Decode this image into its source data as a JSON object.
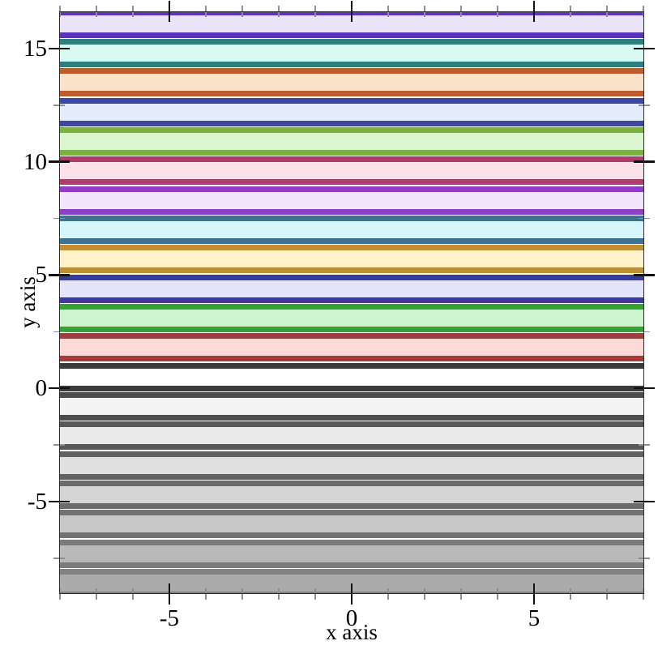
{
  "figure": {
    "background": "#ffffff",
    "frame_color": "#2b2b2b",
    "major_tick_color": "#111111",
    "minor_tick_color": "#8f8f8f"
  },
  "chart_data": {
    "type": "area",
    "subtype": "horizontal-function-intervals",
    "title": "",
    "xlabel": "x axis",
    "ylabel": "y axis",
    "x_range": [
      -8.02,
      8.02
    ],
    "y_range": [
      -9.08,
      16.645
    ],
    "grid": "off",
    "legend": "none",
    "band_rule": "band i spans y in [1.3*i, 1.3*i + 1] for i = -7..12, constant across all x; drawn with thick top/bottom border lines and translucent fill",
    "x_ticks": {
      "major": [
        {
          "v": -5,
          "label": "-5"
        },
        {
          "v": 0,
          "label": "0"
        },
        {
          "v": 5,
          "label": "5"
        }
      ],
      "minor": [
        -8,
        -7,
        -6,
        -4,
        -3,
        -2,
        -1,
        1,
        2,
        3,
        4,
        6,
        7,
        8
      ]
    },
    "y_ticks": {
      "major": [
        {
          "v": -5,
          "label": "-5"
        },
        {
          "v": 0,
          "label": "0"
        },
        {
          "v": 5,
          "label": "5"
        },
        {
          "v": 10,
          "label": "10"
        },
        {
          "v": 15,
          "label": "15"
        }
      ],
      "minor": [
        -7.5,
        -2.5,
        2.5,
        7.5,
        12.5
      ]
    },
    "bands": [
      {
        "i": -7,
        "y_min": -9.1,
        "y_max": -8.1,
        "line_color": "#828282",
        "fill_color": "#ababab"
      },
      {
        "i": -6,
        "y_min": -7.8,
        "y_max": -6.8,
        "line_color": "#7b7b7b",
        "fill_color": "#b9b9b9"
      },
      {
        "i": -5,
        "y_min": -6.5,
        "y_max": -5.5,
        "line_color": "#737373",
        "fill_color": "#c7c7c7"
      },
      {
        "i": -4,
        "y_min": -5.2,
        "y_max": -4.2,
        "line_color": "#6b6b6b",
        "fill_color": "#d5d5d5"
      },
      {
        "i": -3,
        "y_min": -3.9,
        "y_max": -2.9,
        "line_color": "#626262",
        "fill_color": "#e0e0e0"
      },
      {
        "i": -2,
        "y_min": -2.6,
        "y_max": -1.6,
        "line_color": "#585858",
        "fill_color": "#eaeaea"
      },
      {
        "i": -1,
        "y_min": -1.3,
        "y_max": -0.3,
        "line_color": "#4c4c4c",
        "fill_color": "#f4f4f4"
      },
      {
        "i": 0,
        "y_min": 0.0,
        "y_max": 1.0,
        "line_color": "#3a3a3a",
        "fill_color": "#ffffff"
      },
      {
        "i": 1,
        "y_min": 1.3,
        "y_max": 2.3,
        "line_color": "#a43c3c",
        "fill_color": "#fcdada"
      },
      {
        "i": 2,
        "y_min": 2.6,
        "y_max": 3.6,
        "line_color": "#36a136",
        "fill_color": "#cdf4cd"
      },
      {
        "i": 3,
        "y_min": 3.9,
        "y_max": 4.9,
        "line_color": "#3c39a1",
        "fill_color": "#e4e5fa"
      },
      {
        "i": 4,
        "y_min": 5.2,
        "y_max": 6.2,
        "line_color": "#c08f32",
        "fill_color": "#fdf2cc"
      },
      {
        "i": 5,
        "y_min": 6.5,
        "y_max": 7.5,
        "line_color": "#3b7391",
        "fill_color": "#d7f6fb"
      },
      {
        "i": 6,
        "y_min": 7.8,
        "y_max": 8.8,
        "line_color": "#8d40c4",
        "fill_color": "#f3e6fb"
      },
      {
        "i": 7,
        "y_min": 9.1,
        "y_max": 10.1,
        "line_color": "#b23a6d",
        "fill_color": "#fbdfe9"
      },
      {
        "i": 8,
        "y_min": 10.4,
        "y_max": 11.4,
        "line_color": "#7ab23a",
        "fill_color": "#daf6cf"
      },
      {
        "i": 9,
        "y_min": 11.7,
        "y_max": 12.7,
        "line_color": "#3b489d",
        "fill_color": "#e3ecfb"
      },
      {
        "i": 10,
        "y_min": 13.0,
        "y_max": 14.0,
        "line_color": "#bf5c2b",
        "fill_color": "#fbe2cd"
      },
      {
        "i": 11,
        "y_min": 14.3,
        "y_max": 15.3,
        "line_color": "#2f7e7e",
        "fill_color": "#d8faf2"
      },
      {
        "i": 12,
        "y_min": 15.6,
        "y_max": 16.6,
        "line_color": "#5b35b6",
        "fill_color": "#ebe4f8"
      }
    ]
  }
}
